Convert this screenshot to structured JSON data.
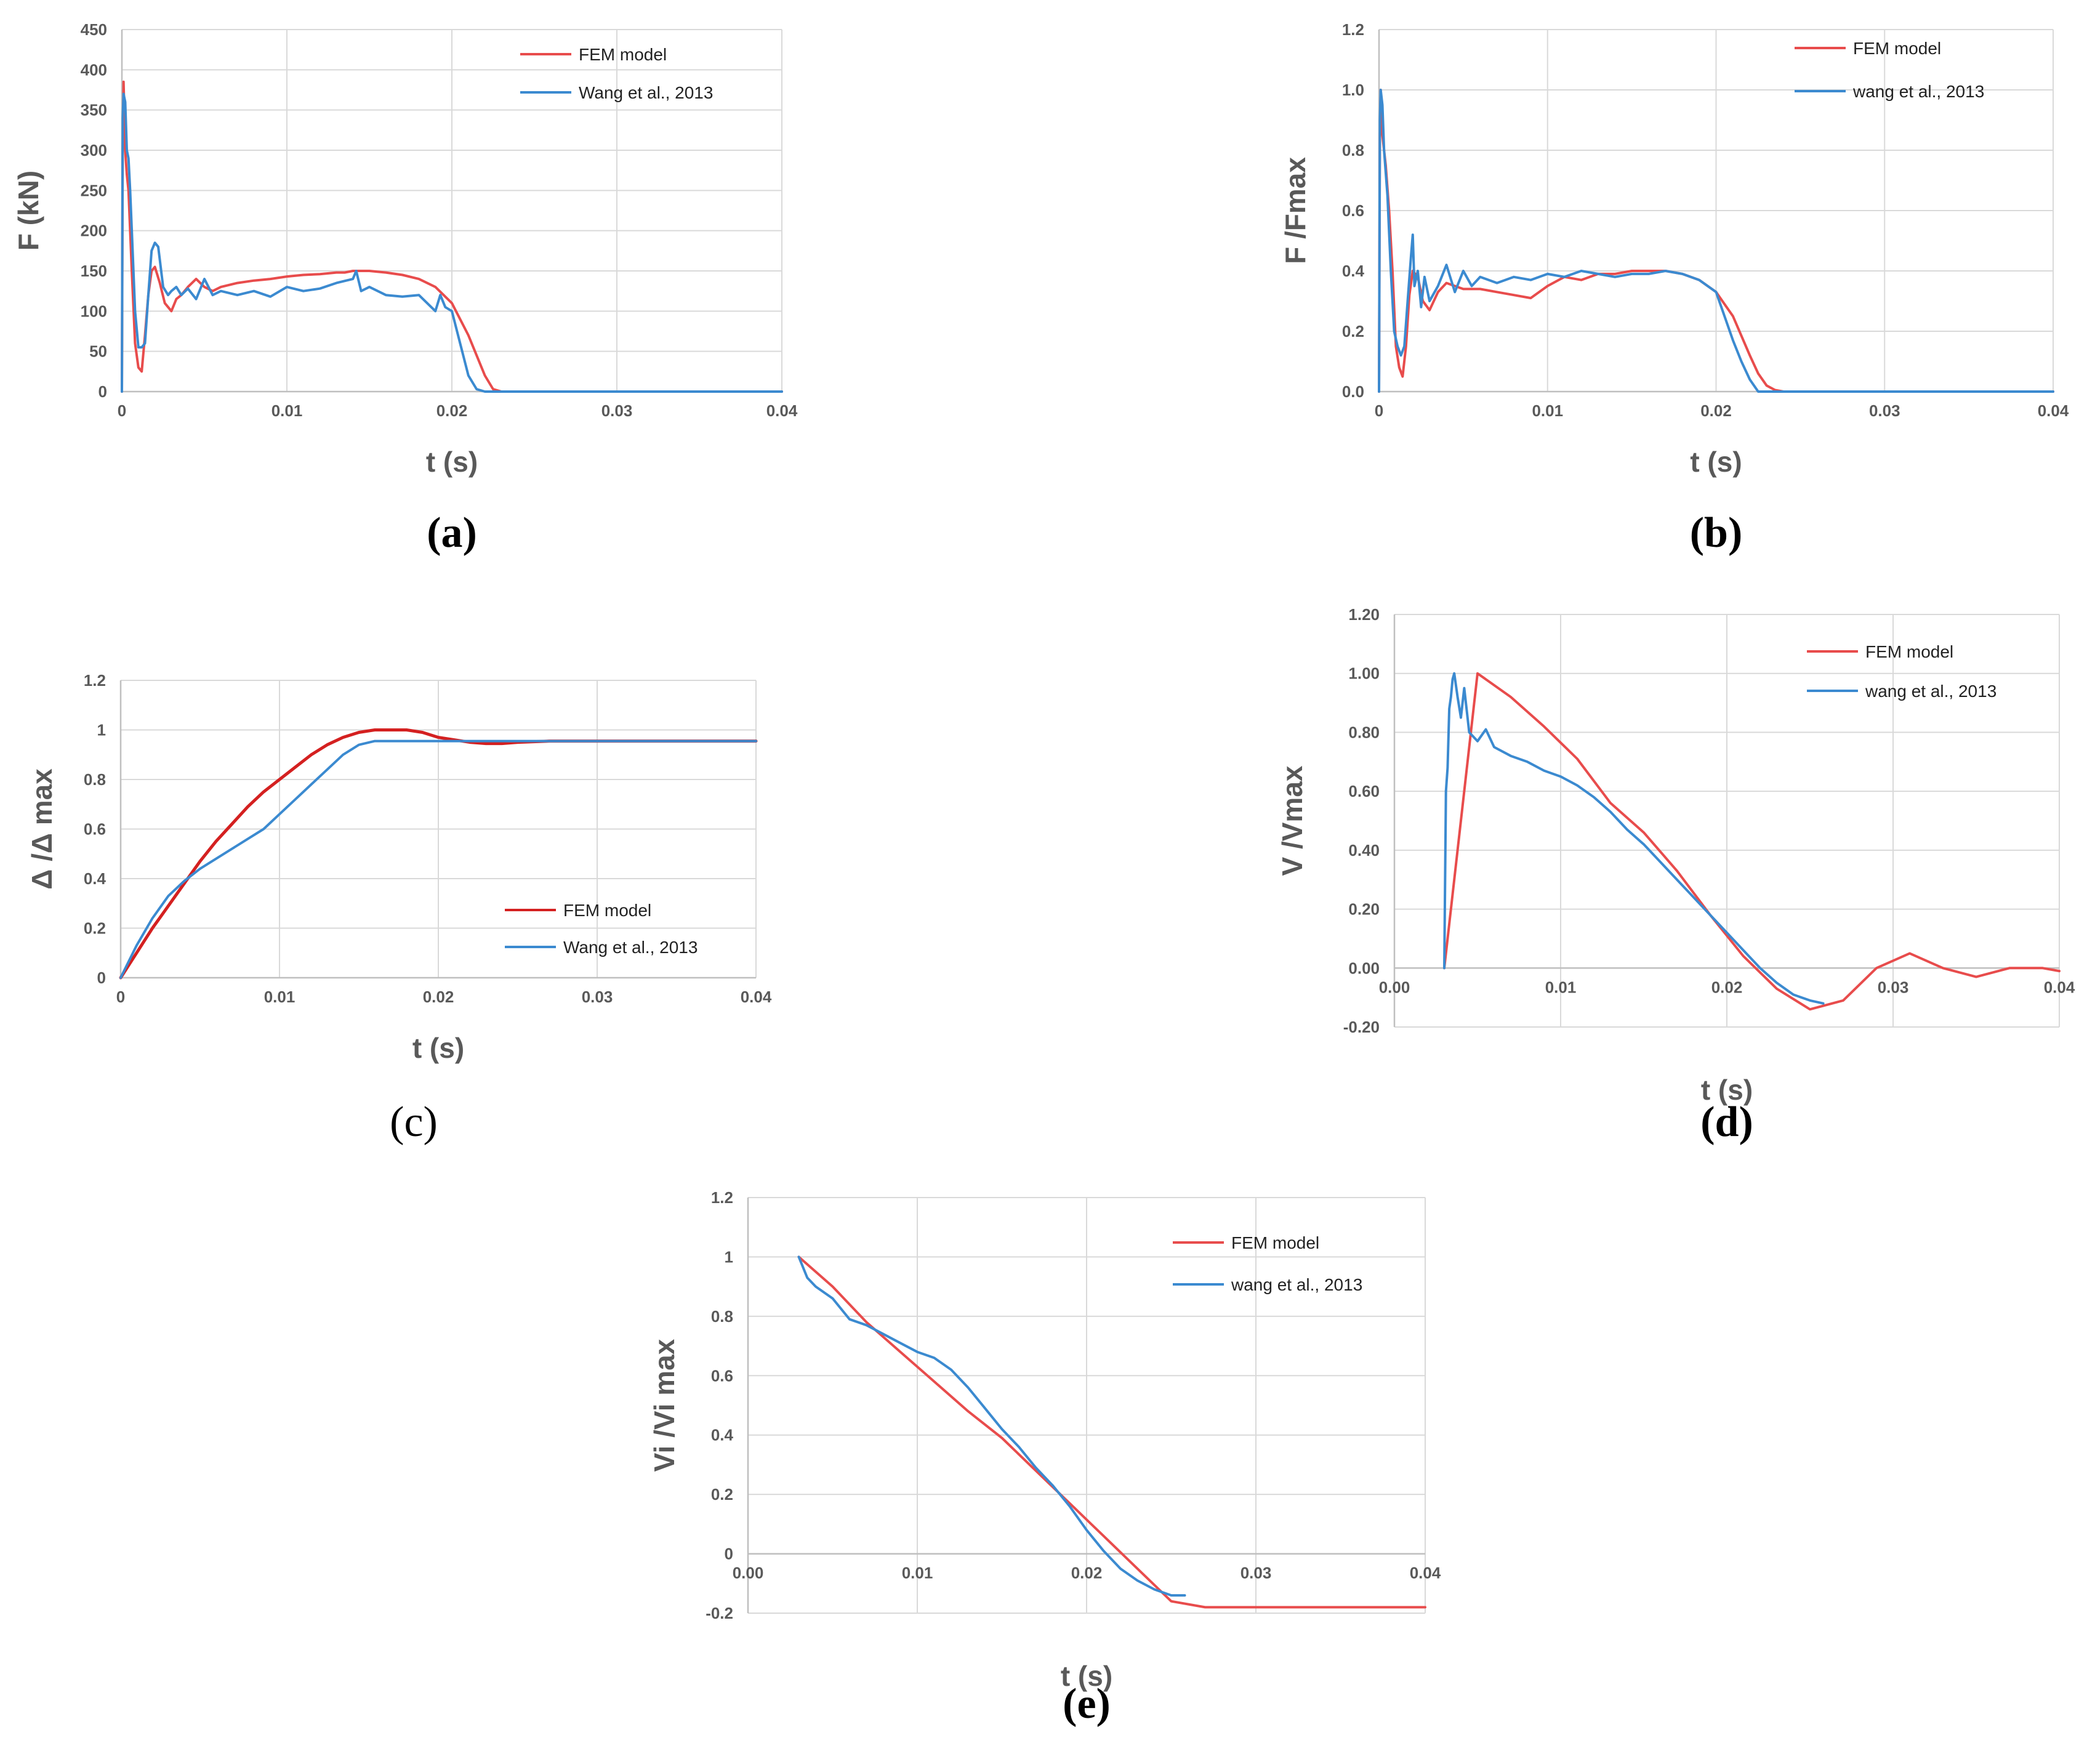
{
  "colors": {
    "fem": "#e84c4c",
    "fem_c": "#d42020",
    "wang": "#3b8ad0",
    "grid": "#d9d9d9",
    "axis": "#bfbfbf"
  },
  "chart_data": [
    {
      "id": "a",
      "panel_label": "(a)",
      "type": "line",
      "xlabel": "t (s)",
      "ylabel": "F (kN)",
      "xlim": [
        0,
        0.04
      ],
      "ylim": [
        0,
        450
      ],
      "xticks": [
        0,
        0.01,
        0.02,
        0.03,
        0.04
      ],
      "xtick_labels": [
        "0",
        "0.01",
        "0.02",
        "0.03",
        "0.04"
      ],
      "yticks": [
        0,
        50,
        100,
        150,
        200,
        250,
        300,
        350,
        400,
        450
      ],
      "ytick_labels": [
        "0",
        "50",
        "100",
        "150",
        "200",
        "250",
        "300",
        "350",
        "400",
        "450"
      ],
      "legend_position": "top-right",
      "series": [
        {
          "name": "FEM model",
          "color": "#e84c4c",
          "x": [
            0,
            5e-05,
            0.0001,
            0.0002,
            0.0003,
            0.0004,
            0.0006,
            0.0008,
            0.001,
            0.0012,
            0.0014,
            0.0016,
            0.0018,
            0.002,
            0.0023,
            0.0026,
            0.003,
            0.0033,
            0.0036,
            0.004,
            0.0045,
            0.005,
            0.0055,
            0.006,
            0.007,
            0.008,
            0.009,
            0.01,
            0.011,
            0.012,
            0.013,
            0.0135,
            0.014,
            0.015,
            0.016,
            0.017,
            0.018,
            0.019,
            0.02,
            0.021,
            0.022,
            0.0225,
            0.023,
            0.04
          ],
          "y": [
            0,
            300,
            385,
            300,
            270,
            250,
            150,
            60,
            30,
            25,
            70,
            120,
            150,
            155,
            135,
            110,
            100,
            115,
            120,
            130,
            140,
            130,
            125,
            130,
            135,
            138,
            140,
            143,
            145,
            146,
            148,
            148,
            150,
            150,
            148,
            145,
            140,
            130,
            110,
            70,
            20,
            3,
            0,
            0
          ]
        },
        {
          "name": "Wang et al., 2013",
          "color": "#3b8ad0",
          "x": [
            0,
            5e-05,
            0.0001,
            0.0002,
            0.0003,
            0.0004,
            0.0005,
            0.0006,
            0.0008,
            0.001,
            0.0012,
            0.0014,
            0.0016,
            0.0018,
            0.002,
            0.0022,
            0.0025,
            0.0028,
            0.003,
            0.0033,
            0.0036,
            0.004,
            0.0045,
            0.005,
            0.0055,
            0.006,
            0.007,
            0.008,
            0.009,
            0.01,
            0.011,
            0.012,
            0.013,
            0.014,
            0.0142,
            0.0145,
            0.015,
            0.016,
            0.017,
            0.018,
            0.019,
            0.0193,
            0.0196,
            0.02,
            0.0205,
            0.021,
            0.0215,
            0.022,
            0.04
          ],
          "y": [
            0,
            340,
            370,
            360,
            300,
            290,
            250,
            200,
            100,
            55,
            55,
            60,
            120,
            175,
            185,
            180,
            130,
            120,
            125,
            130,
            120,
            128,
            115,
            140,
            120,
            125,
            120,
            125,
            118,
            130,
            125,
            128,
            135,
            140,
            150,
            125,
            130,
            120,
            118,
            120,
            100,
            120,
            105,
            100,
            60,
            20,
            3,
            0,
            0
          ]
        }
      ]
    },
    {
      "id": "b",
      "panel_label": "(b)",
      "type": "line",
      "xlabel": "t (s)",
      "ylabel": "F /Fmax",
      "xlim": [
        0,
        0.04
      ],
      "ylim": [
        0,
        1.2
      ],
      "xticks": [
        0,
        0.01,
        0.02,
        0.03,
        0.04
      ],
      "xtick_labels": [
        "0",
        "0.01",
        "0.02",
        "0.03",
        "0.04"
      ],
      "yticks": [
        0,
        0.2,
        0.4,
        0.6,
        0.8,
        1.0,
        1.2
      ],
      "ytick_labels": [
        "0.0",
        "0.2",
        "0.4",
        "0.6",
        "0.8",
        "1.0",
        "1.2"
      ],
      "legend_position": "top-right",
      "series": [
        {
          "name": "FEM model",
          "color": "#e84c4c",
          "x": [
            0,
            5e-05,
            0.0001,
            0.0002,
            0.0004,
            0.0006,
            0.0008,
            0.001,
            0.0012,
            0.0014,
            0.0016,
            0.0018,
            0.002,
            0.0023,
            0.0026,
            0.003,
            0.0035,
            0.004,
            0.0045,
            0.005,
            0.006,
            0.007,
            0.008,
            0.009,
            0.01,
            0.011,
            0.012,
            0.013,
            0.014,
            0.015,
            0.016,
            0.017,
            0.018,
            0.019,
            0.02,
            0.021,
            0.022,
            0.0225,
            0.023,
            0.0235,
            0.024,
            0.04
          ],
          "y": [
            0,
            0.85,
            1.0,
            0.85,
            0.75,
            0.6,
            0.4,
            0.15,
            0.08,
            0.05,
            0.15,
            0.32,
            0.4,
            0.38,
            0.3,
            0.27,
            0.33,
            0.36,
            0.35,
            0.34,
            0.34,
            0.33,
            0.32,
            0.31,
            0.35,
            0.38,
            0.37,
            0.39,
            0.39,
            0.4,
            0.4,
            0.4,
            0.39,
            0.37,
            0.33,
            0.25,
            0.12,
            0.06,
            0.02,
            0.005,
            0,
            0
          ]
        },
        {
          "name": "wang et al., 2013",
          "color": "#3b8ad0",
          "x": [
            0,
            5e-05,
            0.0001,
            0.0002,
            0.0003,
            0.0005,
            0.0007,
            0.0009,
            0.0011,
            0.0013,
            0.0015,
            0.0017,
            0.0019,
            0.002,
            0.0021,
            0.0023,
            0.0025,
            0.0027,
            0.003,
            0.0035,
            0.004,
            0.0045,
            0.005,
            0.0055,
            0.006,
            0.007,
            0.008,
            0.009,
            0.01,
            0.011,
            0.012,
            0.013,
            0.014,
            0.015,
            0.016,
            0.017,
            0.018,
            0.019,
            0.02,
            0.0205,
            0.021,
            0.0215,
            0.022,
            0.0225,
            0.04
          ],
          "y": [
            0,
            0.9,
            1.0,
            0.95,
            0.8,
            0.65,
            0.4,
            0.2,
            0.15,
            0.12,
            0.15,
            0.3,
            0.45,
            0.52,
            0.35,
            0.4,
            0.28,
            0.38,
            0.3,
            0.35,
            0.42,
            0.33,
            0.4,
            0.35,
            0.38,
            0.36,
            0.38,
            0.37,
            0.39,
            0.38,
            0.4,
            0.39,
            0.38,
            0.39,
            0.39,
            0.4,
            0.39,
            0.37,
            0.33,
            0.25,
            0.17,
            0.1,
            0.04,
            0,
            0
          ]
        }
      ]
    },
    {
      "id": "c",
      "panel_label": "(c)",
      "type": "line",
      "xlabel": "t (s)",
      "ylabel": "Δ /Δ max",
      "xlim": [
        0,
        0.04
      ],
      "ylim": [
        0,
        1.2
      ],
      "xticks": [
        0,
        0.01,
        0.02,
        0.03,
        0.04
      ],
      "xtick_labels": [
        "0",
        "0.01",
        "0.02",
        "0.03",
        "0.04"
      ],
      "yticks": [
        0,
        0.2,
        0.4,
        0.6,
        0.8,
        1.0,
        1.2
      ],
      "ytick_labels": [
        "0",
        "0.2",
        "0.4",
        "0.6",
        "0.8",
        "1",
        "1.2"
      ],
      "legend_position": "bottom-right",
      "series": [
        {
          "name": "FEM model",
          "color": "#d42020",
          "x": [
            0,
            0.001,
            0.002,
            0.003,
            0.004,
            0.005,
            0.006,
            0.007,
            0.008,
            0.009,
            0.01,
            0.011,
            0.012,
            0.013,
            0.014,
            0.015,
            0.016,
            0.017,
            0.018,
            0.019,
            0.02,
            0.021,
            0.022,
            0.023,
            0.024,
            0.025,
            0.027,
            0.03,
            0.035,
            0.04
          ],
          "y": [
            0,
            0.1,
            0.2,
            0.29,
            0.38,
            0.47,
            0.55,
            0.62,
            0.69,
            0.75,
            0.8,
            0.85,
            0.9,
            0.94,
            0.97,
            0.99,
            1.0,
            1.0,
            1.0,
            0.99,
            0.97,
            0.96,
            0.95,
            0.945,
            0.945,
            0.95,
            0.955,
            0.955,
            0.955,
            0.955
          ]
        },
        {
          "name": "Wang et al., 2013",
          "color": "#3b8ad0",
          "x": [
            0,
            0.001,
            0.002,
            0.003,
            0.004,
            0.005,
            0.006,
            0.007,
            0.008,
            0.009,
            0.01,
            0.011,
            0.012,
            0.013,
            0.014,
            0.015,
            0.016,
            0.017,
            0.018,
            0.02,
            0.025,
            0.03,
            0.04
          ],
          "y": [
            0,
            0.13,
            0.24,
            0.33,
            0.39,
            0.44,
            0.48,
            0.52,
            0.56,
            0.6,
            0.66,
            0.72,
            0.78,
            0.84,
            0.9,
            0.94,
            0.955,
            0.955,
            0.955,
            0.955,
            0.955,
            0.955,
            0.955
          ]
        }
      ]
    },
    {
      "id": "d",
      "panel_label": "(d)",
      "type": "line",
      "xlabel": "t (s)",
      "ylabel": "V /Vmax",
      "xlim": [
        0,
        0.04
      ],
      "ylim": [
        -0.2,
        1.2
      ],
      "xticks": [
        0,
        0.01,
        0.02,
        0.03,
        0.04
      ],
      "xtick_labels": [
        "0.00",
        "0.01",
        "0.02",
        "0.03",
        "0.04"
      ],
      "yticks": [
        -0.2,
        0,
        0.2,
        0.4,
        0.6,
        0.8,
        1.0,
        1.2
      ],
      "ytick_labels": [
        "-0.20",
        "0.00",
        "0.20",
        "0.40",
        "0.60",
        "0.80",
        "1.00",
        "1.20"
      ],
      "legend_position": "top-right",
      "series": [
        {
          "name": "FEM model",
          "color": "#e84c4c",
          "x": [
            0.003,
            0.005,
            0.007,
            0.009,
            0.011,
            0.013,
            0.015,
            0.017,
            0.019,
            0.021,
            0.023,
            0.025,
            0.027,
            0.029,
            0.031,
            0.033,
            0.035,
            0.037,
            0.039,
            0.04
          ],
          "y": [
            0,
            1.0,
            0.92,
            0.82,
            0.71,
            0.56,
            0.46,
            0.33,
            0.18,
            0.04,
            -0.07,
            -0.14,
            -0.11,
            0.0,
            0.05,
            0.0,
            -0.03,
            0.0,
            0.0,
            -0.01
          ]
        },
        {
          "name": "wang et al., 2013",
          "color": "#3b8ad0",
          "x": [
            0.003,
            0.0031,
            0.0032,
            0.0033,
            0.0034,
            0.0035,
            0.0036,
            0.0038,
            0.004,
            0.0042,
            0.0045,
            0.005,
            0.0055,
            0.006,
            0.007,
            0.008,
            0.009,
            0.01,
            0.011,
            0.012,
            0.013,
            0.014,
            0.015,
            0.016,
            0.017,
            0.018,
            0.019,
            0.02,
            0.021,
            0.022,
            0.023,
            0.024,
            0.025,
            0.0258
          ],
          "y": [
            0,
            0.6,
            0.68,
            0.88,
            0.92,
            0.98,
            1.0,
            0.92,
            0.85,
            0.95,
            0.8,
            0.77,
            0.81,
            0.75,
            0.72,
            0.7,
            0.67,
            0.65,
            0.62,
            0.58,
            0.53,
            0.47,
            0.42,
            0.36,
            0.3,
            0.24,
            0.18,
            0.12,
            0.06,
            0.0,
            -0.05,
            -0.09,
            -0.11,
            -0.12
          ]
        }
      ]
    },
    {
      "id": "e",
      "panel_label": "(e)",
      "type": "line",
      "xlabel": "t (s)",
      "ylabel": "Vi /Vi max",
      "xlim": [
        0,
        0.04
      ],
      "ylim": [
        -0.2,
        1.2
      ],
      "xticks": [
        0,
        0.01,
        0.02,
        0.03,
        0.04
      ],
      "xtick_labels": [
        "0.00",
        "0.01",
        "0.02",
        "0.03",
        "0.04"
      ],
      "yticks": [
        -0.2,
        0,
        0.2,
        0.4,
        0.6,
        0.8,
        1.0,
        1.2
      ],
      "ytick_labels": [
        "-0.2",
        "0",
        "0.2",
        "0.4",
        "0.6",
        "0.8",
        "1",
        "1.2"
      ],
      "legend_position": "top-right",
      "series": [
        {
          "name": "FEM model",
          "color": "#e84c4c",
          "x": [
            0.003,
            0.005,
            0.007,
            0.009,
            0.011,
            0.013,
            0.015,
            0.017,
            0.019,
            0.021,
            0.023,
            0.025,
            0.027,
            0.03,
            0.035,
            0.04
          ],
          "y": [
            1.0,
            0.9,
            0.78,
            0.68,
            0.58,
            0.48,
            0.39,
            0.28,
            0.17,
            0.06,
            -0.05,
            -0.16,
            -0.18,
            -0.18,
            -0.18,
            -0.18
          ]
        },
        {
          "name": "wang et al., 2013",
          "color": "#3b8ad0",
          "x": [
            0.003,
            0.0035,
            0.004,
            0.005,
            0.006,
            0.007,
            0.008,
            0.009,
            0.01,
            0.011,
            0.012,
            0.013,
            0.014,
            0.015,
            0.016,
            0.017,
            0.018,
            0.019,
            0.02,
            0.021,
            0.022,
            0.023,
            0.024,
            0.025,
            0.0258
          ],
          "y": [
            1.0,
            0.93,
            0.9,
            0.86,
            0.79,
            0.77,
            0.74,
            0.71,
            0.68,
            0.66,
            0.62,
            0.56,
            0.49,
            0.42,
            0.36,
            0.29,
            0.23,
            0.16,
            0.08,
            0.01,
            -0.05,
            -0.09,
            -0.12,
            -0.14,
            -0.14
          ]
        }
      ]
    }
  ]
}
